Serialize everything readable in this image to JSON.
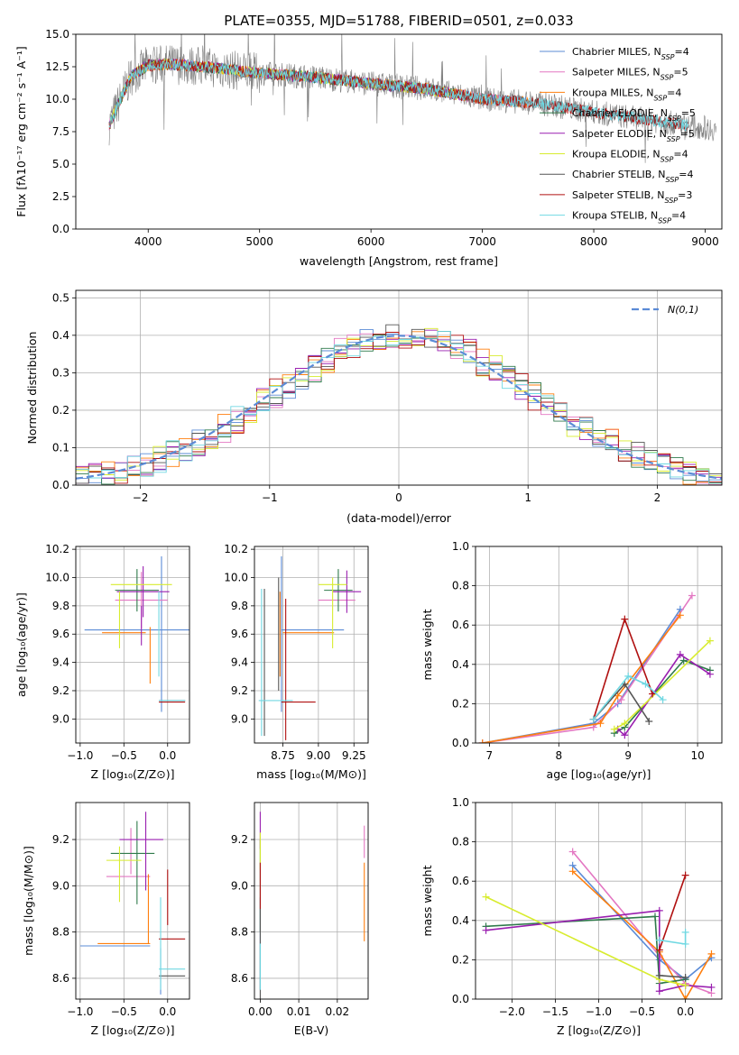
{
  "colors": {
    "Chabrier MILES": "#5b8bd6",
    "Salpeter MILES": "#e377c2",
    "Kroupa MILES": "#ff7f0e",
    "Chabrier ELODIE": "#2f7a4b",
    "Salpeter ELODIE": "#9a1fb0",
    "Kroupa ELODIE": "#d8ec2f",
    "Chabrier STELIB": "#555555",
    "Salpeter STELIB": "#b01010",
    "Kroupa STELIB": "#70d8e2"
  },
  "chart_data": [
    {
      "id": "spectrum",
      "type": "line",
      "title": "PLATE=0355, MJD=51788, FIBERID=0501, z=0.033",
      "xlabel": "wavelength [Angstrom, rest frame]",
      "ylabel": "Flux [fλ10⁻¹⁷ erg cm⁻² s⁻¹ A⁻¹]",
      "xlim": [
        3350,
        9150
      ],
      "ylim": [
        0,
        15
      ],
      "xticks": [
        "4000",
        "5000",
        "6000",
        "7000",
        "8000",
        "9000"
      ],
      "yticks": [
        "0.0",
        "2.5",
        "5.0",
        "7.5",
        "10.0",
        "12.5",
        "15.0"
      ],
      "grid": false,
      "legend_position": "upper right",
      "legend": [
        {
          "name": "Chabrier MILES",
          "nssp": "4"
        },
        {
          "name": "Salpeter MILES",
          "nssp": "5"
        },
        {
          "name": "Kroupa MILES",
          "nssp": "4"
        },
        {
          "name": "Chabrier ELODIE",
          "nssp": "5"
        },
        {
          "name": "Salpeter ELODIE",
          "nssp": "5"
        },
        {
          "name": "Kroupa ELODIE",
          "nssp": "4"
        },
        {
          "name": "Chabrier STELIB",
          "nssp": "4"
        },
        {
          "name": "Salpeter STELIB",
          "nssp": "3"
        },
        {
          "name": "Kroupa STELIB",
          "nssp": "4"
        }
      ],
      "data_range": [
        3650,
        9100
      ],
      "model_ranges": {
        "MILES": [
          3650,
          7420
        ],
        "ELODIE": [
          3650,
          6800
        ],
        "STELIB": [
          3650,
          8850
        ]
      },
      "continuum": [
        [
          3650,
          8.0
        ],
        [
          3750,
          10.0
        ],
        [
          3850,
          11.8
        ],
        [
          4000,
          12.6
        ],
        [
          4200,
          12.7
        ],
        [
          4500,
          12.5
        ],
        [
          5000,
          12.0
        ],
        [
          5500,
          11.7
        ],
        [
          6000,
          11.2
        ],
        [
          6500,
          10.8
        ],
        [
          7000,
          10.0
        ],
        [
          7500,
          9.7
        ],
        [
          8000,
          9.0
        ],
        [
          8500,
          8.4
        ],
        [
          9000,
          7.8
        ],
        [
          9100,
          7.7
        ]
      ]
    },
    {
      "id": "residuals",
      "type": "line",
      "xlabel": "(data-model)/error",
      "ylabel": "Normed distribution",
      "xlim": [
        -2.5,
        2.5
      ],
      "ylim": [
        0,
        0.52
      ],
      "xticks": [
        "−2",
        "−1",
        "0",
        "1",
        "2"
      ],
      "yticks": [
        "0.0",
        "0.1",
        "0.2",
        "0.3",
        "0.4",
        "0.5"
      ],
      "grid": true,
      "legend_position": "upper right",
      "reference_label": "N(0,1)",
      "bin_width": 0.1
    },
    {
      "id": "age_vs_Z",
      "type": "scatter",
      "xlabel": "Z [log₁₀(Z/Z⊙)]",
      "ylabel": "age  [log₁₀(age/yr)]",
      "xlim": [
        -1.05,
        0.25
      ],
      "ylim": [
        8.83,
        10.22
      ],
      "xticks": [
        "−1.0",
        "−0.5",
        "0.0"
      ],
      "yticks": [
        "9.0",
        "9.2",
        "9.4",
        "9.6",
        "9.8",
        "10.0",
        "10.2"
      ],
      "grid": true,
      "points": [
        {
          "model": "Chabrier MILES",
          "x": -0.07,
          "xerr": 0.0,
          "y": 9.6,
          "yerr": 0.55
        },
        {
          "model": "Chabrier MILES",
          "x": -0.25,
          "xerr": 0.7,
          "y": 9.63,
          "yerr": 0.0
        },
        {
          "model": "Salpeter MILES",
          "x": -0.3,
          "xerr": 0.3,
          "y": 9.84,
          "yerr": 0.2
        },
        {
          "model": "Kroupa MILES",
          "x": -0.5,
          "xerr": 0.25,
          "y": 9.61,
          "yerr": 0.0
        },
        {
          "model": "Kroupa MILES",
          "x": -0.2,
          "xerr": 0.0,
          "y": 9.45,
          "yerr": 0.2
        },
        {
          "model": "Chabrier ELODIE",
          "x": -0.35,
          "xerr": 0.25,
          "y": 9.91,
          "yerr": 0.15
        },
        {
          "model": "Salpeter ELODIE",
          "x": -0.28,
          "xerr": 0.3,
          "y": 9.9,
          "yerr": 0.18
        },
        {
          "model": "Salpeter ELODIE",
          "x": -0.3,
          "xerr": 0.0,
          "y": 9.66,
          "yerr": 0.14
        },
        {
          "model": "Kroupa ELODIE",
          "x": -0.3,
          "xerr": 0.35,
          "y": 9.95,
          "yerr": 0.0
        },
        {
          "model": "Kroupa ELODIE",
          "x": -0.55,
          "xerr": 0.0,
          "y": 9.7,
          "yerr": 0.2
        },
        {
          "model": "Chabrier STELIB",
          "x": 0.05,
          "xerr": 0.15,
          "y": 9.13,
          "yerr": 0.0
        },
        {
          "model": "Salpeter STELIB",
          "x": 0.05,
          "xerr": 0.15,
          "y": 9.12,
          "yerr": 0.0
        },
        {
          "model": "Kroupa STELIB",
          "x": -0.1,
          "xerr": 0.0,
          "y": 9.6,
          "yerr": 0.3
        },
        {
          "model": "Kroupa STELIB",
          "x": 0.05,
          "xerr": 0.15,
          "y": 9.13,
          "yerr": 0.0
        }
      ]
    },
    {
      "id": "age_vs_mass",
      "type": "scatter",
      "xlabel": "mass [log₁₀(M/M⊙)]",
      "xlim": [
        8.55,
        9.35
      ],
      "ylim": [
        8.83,
        10.22
      ],
      "xticks": [
        "8.75",
        "9.00",
        "9.25"
      ],
      "yticks": [
        "9.0",
        "9.2",
        "9.4",
        "9.6",
        "9.8",
        "10.0",
        "10.2"
      ],
      "grid": true,
      "points": [
        {
          "model": "Chabrier MILES",
          "x": 8.74,
          "xerr": 0.0,
          "y": 9.6,
          "yerr": 0.55
        },
        {
          "model": "Chabrier MILES",
          "x": 8.96,
          "xerr": 0.22,
          "y": 9.63,
          "yerr": 0.0
        },
        {
          "model": "Salpeter MILES",
          "x": 9.13,
          "xerr": 0.13,
          "y": 9.84,
          "yerr": 0.0
        },
        {
          "model": "Kroupa MILES",
          "x": 8.73,
          "xerr": 0.0,
          "y": 9.6,
          "yerr": 0.3
        },
        {
          "model": "Kroupa MILES",
          "x": 8.93,
          "xerr": 0.18,
          "y": 9.61,
          "yerr": 0.0
        },
        {
          "model": "Chabrier ELODIE",
          "x": 9.14,
          "xerr": 0.1,
          "y": 9.91,
          "yerr": 0.15
        },
        {
          "model": "Salpeter ELODIE",
          "x": 9.2,
          "xerr": 0.1,
          "y": 9.9,
          "yerr": 0.15
        },
        {
          "model": "Kroupa ELODIE",
          "x": 9.1,
          "xerr": 0.1,
          "y": 9.95,
          "yerr": 0.0
        },
        {
          "model": "Kroupa ELODIE",
          "x": 9.1,
          "xerr": 0.0,
          "y": 9.75,
          "yerr": 0.25
        },
        {
          "model": "Chabrier STELIB",
          "x": 8.62,
          "xerr": 0.0,
          "y": 9.4,
          "yerr": 0.52
        },
        {
          "model": "Chabrier STELIB",
          "x": 8.72,
          "xerr": 0.0,
          "y": 9.6,
          "yerr": 0.4
        },
        {
          "model": "Salpeter STELIB",
          "x": 8.77,
          "xerr": 0.0,
          "y": 9.35,
          "yerr": 0.5
        },
        {
          "model": "Salpeter STELIB",
          "x": 8.86,
          "xerr": 0.12,
          "y": 9.12,
          "yerr": 0.0
        },
        {
          "model": "Kroupa STELIB",
          "x": 8.6,
          "xerr": 0.0,
          "y": 9.4,
          "yerr": 0.52
        },
        {
          "model": "Kroupa STELIB",
          "x": 8.7,
          "xerr": 0.12,
          "y": 9.13,
          "yerr": 0.0
        }
      ]
    },
    {
      "id": "weights_vs_age",
      "type": "line",
      "xlabel": "age  [log₁₀(age/yr)]",
      "ylabel": "mass weight",
      "xlim": [
        6.8,
        10.35
      ],
      "ylim": [
        0,
        1
      ],
      "xticks": [
        "7",
        "8",
        "9",
        "10"
      ],
      "yticks": [
        "0.0",
        "0.2",
        "0.4",
        "0.6",
        "0.8",
        "1.0"
      ],
      "grid": true,
      "series": [
        {
          "model": "Chabrier MILES",
          "x": [
            6.9,
            8.5,
            8.85,
            9.75
          ],
          "y": [
            0.0,
            0.1,
            0.2,
            0.68
          ]
        },
        {
          "model": "Salpeter MILES",
          "x": [
            6.9,
            8.5,
            8.9,
            9.92
          ],
          "y": [
            0.0,
            0.08,
            0.22,
            0.75
          ]
        },
        {
          "model": "Kroupa MILES",
          "x": [
            6.9,
            8.6,
            8.85,
            9.75
          ],
          "y": [
            0.0,
            0.1,
            0.24,
            0.65
          ]
        },
        {
          "model": "Chabrier ELODIE",
          "x": [
            8.8,
            8.95,
            9.8,
            10.18
          ],
          "y": [
            0.05,
            0.08,
            0.42,
            0.37
          ]
        },
        {
          "model": "Salpeter ELODIE",
          "x": [
            8.85,
            8.95,
            9.75,
            10.18
          ],
          "y": [
            0.07,
            0.04,
            0.45,
            0.35
          ]
        },
        {
          "model": "Kroupa ELODIE",
          "x": [
            8.8,
            8.95,
            10.18
          ],
          "y": [
            0.07,
            0.1,
            0.52
          ]
        },
        {
          "model": "Chabrier STELIB",
          "x": [
            8.5,
            8.95,
            9.3
          ],
          "y": [
            0.12,
            0.3,
            0.11
          ]
        },
        {
          "model": "Salpeter STELIB",
          "x": [
            8.5,
            8.95,
            9.35
          ],
          "y": [
            0.12,
            0.63,
            0.25
          ]
        },
        {
          "model": "Kroupa STELIB",
          "x": [
            8.5,
            9.0,
            9.25,
            9.5
          ],
          "y": [
            0.12,
            0.34,
            0.3,
            0.22
          ]
        }
      ]
    },
    {
      "id": "mass_vs_Z",
      "type": "scatter",
      "xlabel": "Z [log₁₀(Z/Z⊙)]",
      "ylabel": "mass [log₁₀(M/M⊙)]",
      "xlim": [
        -1.05,
        0.25
      ],
      "ylim": [
        8.51,
        9.36
      ],
      "xticks": [
        "−1.0",
        "−0.5",
        "0.0"
      ],
      "yticks": [
        "8.6",
        "8.8",
        "9.0",
        "9.2"
      ],
      "grid": true,
      "points": [
        {
          "model": "Chabrier MILES",
          "x": -0.6,
          "xerr": 0.4,
          "y": 8.74,
          "yerr": 0.0
        },
        {
          "model": "Chabrier MILES",
          "x": -0.08,
          "xerr": 0.0,
          "y": 8.63,
          "yerr": 0.1
        },
        {
          "model": "Salpeter MILES",
          "x": -0.45,
          "xerr": 0.25,
          "y": 9.04,
          "yerr": 0.0
        },
        {
          "model": "Salpeter MILES",
          "x": -0.42,
          "xerr": 0.0,
          "y": 9.15,
          "yerr": 0.1
        },
        {
          "model": "Kroupa MILES",
          "x": -0.5,
          "xerr": 0.3,
          "y": 8.75,
          "yerr": 0.0
        },
        {
          "model": "Kroupa MILES",
          "x": -0.22,
          "xerr": 0.0,
          "y": 8.9,
          "yerr": 0.15
        },
        {
          "model": "Chabrier ELODIE",
          "x": -0.4,
          "xerr": 0.25,
          "y": 9.14,
          "yerr": 0.0
        },
        {
          "model": "Chabrier ELODIE",
          "x": -0.35,
          "xerr": 0.0,
          "y": 9.1,
          "yerr": 0.18
        },
        {
          "model": "Salpeter ELODIE",
          "x": -0.3,
          "xerr": 0.25,
          "y": 9.2,
          "yerr": 0.0
        },
        {
          "model": "Salpeter ELODIE",
          "x": -0.25,
          "xerr": 0.0,
          "y": 9.15,
          "yerr": 0.17
        },
        {
          "model": "Kroupa ELODIE",
          "x": -0.5,
          "xerr": 0.2,
          "y": 9.11,
          "yerr": 0.0
        },
        {
          "model": "Kroupa ELODIE",
          "x": -0.55,
          "xerr": 0.0,
          "y": 9.05,
          "yerr": 0.12
        },
        {
          "model": "Chabrier STELIB",
          "x": 0.05,
          "xerr": 0.15,
          "y": 8.61,
          "yerr": 0.0
        },
        {
          "model": "Salpeter STELIB",
          "x": 0.05,
          "xerr": 0.15,
          "y": 8.77,
          "yerr": 0.0
        },
        {
          "model": "Salpeter STELIB",
          "x": 0.0,
          "xerr": 0.0,
          "y": 8.95,
          "yerr": 0.12
        },
        {
          "model": "Kroupa STELIB",
          "x": -0.08,
          "xerr": 0.0,
          "y": 8.75,
          "yerr": 0.2
        },
        {
          "model": "Kroupa STELIB",
          "x": 0.05,
          "xerr": 0.15,
          "y": 8.64,
          "yerr": 0.0
        }
      ]
    },
    {
      "id": "mass_vs_ebv",
      "type": "scatter",
      "xlabel": "E(B-V)",
      "xlim": [
        -0.0015,
        0.028
      ],
      "ylim": [
        8.51,
        9.36
      ],
      "xticks": [
        "0.00",
        "0.01",
        "0.02"
      ],
      "yticks": [
        "8.6",
        "8.8",
        "9.0",
        "9.2"
      ],
      "grid": true,
      "points": [
        {
          "model": "Chabrier MILES",
          "x": 0.0,
          "xerr": 0.0,
          "y": 8.75,
          "yerr": 0.2
        },
        {
          "model": "Salpeter MILES",
          "x": 0.027,
          "xerr": 0.0,
          "y": 9.19,
          "yerr": 0.07
        },
        {
          "model": "Kroupa MILES",
          "x": 0.027,
          "xerr": 0.0,
          "y": 8.93,
          "yerr": 0.17
        },
        {
          "model": "Chabrier ELODIE",
          "x": 0.0,
          "xerr": 0.0,
          "y": 9.0,
          "yerr": 0.2
        },
        {
          "model": "Salpeter ELODIE",
          "x": 0.0,
          "xerr": 0.0,
          "y": 9.24,
          "yerr": 0.08
        },
        {
          "model": "Kroupa ELODIE",
          "x": 0.0,
          "xerr": 0.0,
          "y": 9.15,
          "yerr": 0.08
        },
        {
          "model": "Chabrier STELIB",
          "x": 0.0,
          "xerr": 0.0,
          "y": 8.7,
          "yerr": 0.2
        },
        {
          "model": "Salpeter STELIB",
          "x": 0.0,
          "xerr": 0.0,
          "y": 9.0,
          "yerr": 0.1
        },
        {
          "model": "Kroupa STELIB",
          "x": 0.0,
          "xerr": 0.0,
          "y": 8.65,
          "yerr": 0.1
        }
      ]
    },
    {
      "id": "weights_vs_Z",
      "type": "line",
      "xlabel": "Z [log₁₀(Z/Z⊙)]",
      "ylabel": "mass weight",
      "xlim": [
        -2.42,
        0.42
      ],
      "ylim": [
        0,
        1
      ],
      "xticks": [
        "−2.0",
        "−1.5",
        "−1.0",
        "−0.5",
        "0.0"
      ],
      "yticks": [
        "0.0",
        "0.2",
        "0.4",
        "0.6",
        "0.8",
        "1.0"
      ],
      "grid": true,
      "series": [
        {
          "model": "Chabrier MILES",
          "x": [
            -1.3,
            -0.3,
            0.0,
            0.3
          ],
          "y": [
            0.68,
            0.2,
            0.1,
            0.21
          ]
        },
        {
          "model": "Salpeter MILES",
          "x": [
            -1.3,
            -0.3,
            0.0,
            0.3
          ],
          "y": [
            0.75,
            0.22,
            0.08,
            0.03
          ]
        },
        {
          "model": "Kroupa MILES",
          "x": [
            -1.3,
            -0.3,
            0.0,
            0.3
          ],
          "y": [
            0.65,
            0.24,
            0.0,
            0.23
          ]
        },
        {
          "model": "Chabrier ELODIE",
          "x": [
            -2.3,
            -0.35,
            -0.3,
            0.0
          ],
          "y": [
            0.37,
            0.42,
            0.08,
            0.1
          ]
        },
        {
          "model": "Salpeter ELODIE",
          "x": [
            -2.3,
            -0.3,
            -0.3,
            0.0,
            0.3
          ],
          "y": [
            0.35,
            0.45,
            0.04,
            0.07,
            0.06
          ]
        },
        {
          "model": "Kroupa ELODIE",
          "x": [
            -2.3,
            -0.3,
            0.0
          ],
          "y": [
            0.52,
            0.1,
            0.07
          ]
        },
        {
          "model": "Chabrier STELIB",
          "x": [
            -0.3,
            0.0
          ],
          "y": [
            0.12,
            0.11
          ]
        },
        {
          "model": "Salpeter STELIB",
          "x": [
            -0.3,
            0.0
          ],
          "y": [
            0.25,
            0.63
          ]
        },
        {
          "model": "Kroupa STELIB",
          "x": [
            -0.3,
            0.0,
            0.0
          ],
          "y": [
            0.3,
            0.28,
            0.34
          ]
        }
      ]
    }
  ]
}
